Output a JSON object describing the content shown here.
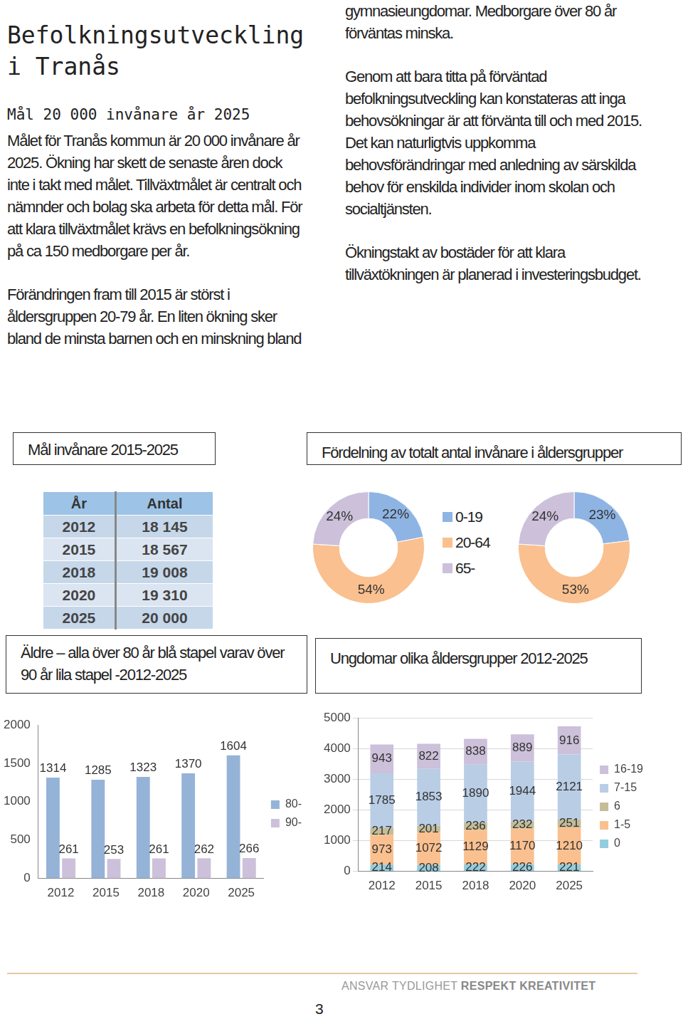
{
  "document": {
    "title": "Befolkningsutveckling i Tranås",
    "subtitle": "Mål 20 000 invånare år 2025",
    "paragraphs": [
      "Målet för Tranås kommun är 20 000 invånare år 2025. Ökning har skett de senaste åren dock inte i takt med målet. Tillväxtmålet är centralt och nämnder och bolag ska arbeta för detta mål. För att klara tillväxtmålet krävs en befolkningsökning på ca 150 medborgare per år.",
      "Förändringen fram till 2015 är störst i åldersgruppen 20-79 år. En liten ökning sker bland de minsta barnen och en minskning bland gymnasieungdomar. Medborgare över 80 år förväntas minska.",
      "Genom att bara titta på förväntad befolkningsutveckling kan konstateras att inga behovsökningar är att förvänta till och med 2015. Det kan naturligtvis uppkomma behovsförändringar med anledning av särskilda behov för enskilda individer inom skolan och socialtjänsten.",
      "Ökningstakt av bostäder för att klara tillväxtökningen är planerad i investeringsbudget."
    ],
    "table": {
      "title": "Mål invånare 2015-2025",
      "header": [
        "År",
        "Antal"
      ],
      "rows": [
        [
          "2012",
          "18 145"
        ],
        [
          "2015",
          "18 567"
        ],
        [
          "2018",
          "19 008"
        ],
        [
          "2020",
          "19 310"
        ],
        [
          "2025",
          "20 000"
        ]
      ]
    },
    "footer": {
      "motto": [
        "ANSVAR",
        "TYDLIGHET",
        "RESPEKT",
        "KREATIVITET"
      ],
      "page": "3"
    }
  },
  "chart_data": [
    {
      "type": "doughnut",
      "title": "Fördelning av totalt antal invånare i åldersgrupper",
      "categories": [
        "0-19",
        "20-64",
        "65-"
      ],
      "values": [
        22,
        54,
        24
      ],
      "value_labels": [
        "22%",
        "54%",
        "24%"
      ],
      "colors": [
        "#8eb4e3",
        "#fac08f",
        "#ccc0da"
      ],
      "data_labels": true,
      "legend": "right"
    },
    {
      "type": "doughnut",
      "categories": [
        "0-19",
        "20-64",
        "65-"
      ],
      "values": [
        23,
        53,
        24
      ],
      "value_labels": [
        "23%",
        "53%",
        "24%"
      ],
      "colors": [
        "#8eb4e3",
        "#fac08f",
        "#ccc0da"
      ],
      "data_labels": true
    },
    {
      "type": "bar",
      "title": "Äldre – alla över 80 år blå stapel varav över 90 år lila stapel -2012-2025",
      "categories": [
        "2012",
        "2015",
        "2018",
        "2020",
        "2025"
      ],
      "series": [
        {
          "name": "80-",
          "color": "#95b3d7",
          "values": [
            1314,
            1285,
            1323,
            1370,
            1604
          ]
        },
        {
          "name": "90-",
          "color": "#ccc0da",
          "values": [
            261,
            253,
            261,
            262,
            266
          ]
        }
      ],
      "ylim": [
        0,
        2000
      ],
      "yticks": [
        0,
        500,
        1000,
        1500,
        2000
      ],
      "grid": false,
      "legend": "right",
      "data_labels": true
    },
    {
      "type": "bar",
      "title": "Ungdomar olika åldersgrupper 2012-2025",
      "stacked": true,
      "categories": [
        "2012",
        "2015",
        "2018",
        "2020",
        "2025"
      ],
      "series": [
        {
          "name": "0",
          "color": "#93cddd",
          "values": [
            214,
            208,
            222,
            226,
            221
          ]
        },
        {
          "name": "1-5",
          "color": "#fac08f",
          "values": [
            973,
            1072,
            1129,
            1170,
            1210
          ]
        },
        {
          "name": "6",
          "color": "#c4bd97",
          "values": [
            217,
            201,
            236,
            232,
            251
          ]
        },
        {
          "name": "7-15",
          "color": "#b9cde5",
          "values": [
            1785,
            1853,
            1890,
            1944,
            2121
          ]
        },
        {
          "name": "16-19",
          "color": "#ccc0da",
          "values": [
            943,
            822,
            838,
            889,
            916
          ]
        }
      ],
      "ylim": [
        0,
        5000
      ],
      "yticks": [
        0,
        1000,
        2000,
        3000,
        4000,
        5000
      ],
      "grid": true,
      "legend": "right",
      "data_labels": true
    }
  ]
}
